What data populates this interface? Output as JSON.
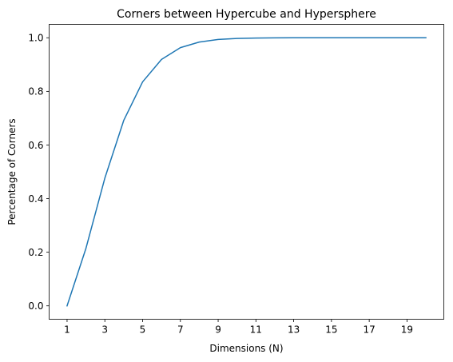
{
  "chart_data": {
    "type": "line",
    "title": "Corners between Hypercube and Hypersphere",
    "xlabel": "Dimensions (N)",
    "ylabel": "Percentage of Corners",
    "xlim": [
      0.05,
      20.95
    ],
    "ylim": [
      -0.05,
      1.05
    ],
    "xticks": [
      1,
      3,
      5,
      7,
      9,
      11,
      13,
      15,
      17,
      19
    ],
    "yticks": [
      0.0,
      0.2,
      0.4,
      0.6,
      0.8,
      1.0
    ],
    "ytick_labels": [
      "0.0",
      "0.2",
      "0.4",
      "0.6",
      "0.8",
      "1.0"
    ],
    "grid": false,
    "series": [
      {
        "color": "#1f77b4",
        "x": [
          1,
          2,
          3,
          4,
          5,
          6,
          7,
          8,
          9,
          10,
          11,
          12,
          13,
          14,
          15,
          16,
          17,
          18,
          19,
          20
        ],
        "values": [
          0.0,
          0.2146,
          0.4764,
          0.6916,
          0.8355,
          0.9193,
          0.9631,
          0.9841,
          0.9936,
          0.9975,
          0.9991,
          0.9997,
          0.9999,
          1.0,
          1.0,
          1.0,
          1.0,
          1.0,
          1.0,
          1.0
        ]
      }
    ]
  }
}
